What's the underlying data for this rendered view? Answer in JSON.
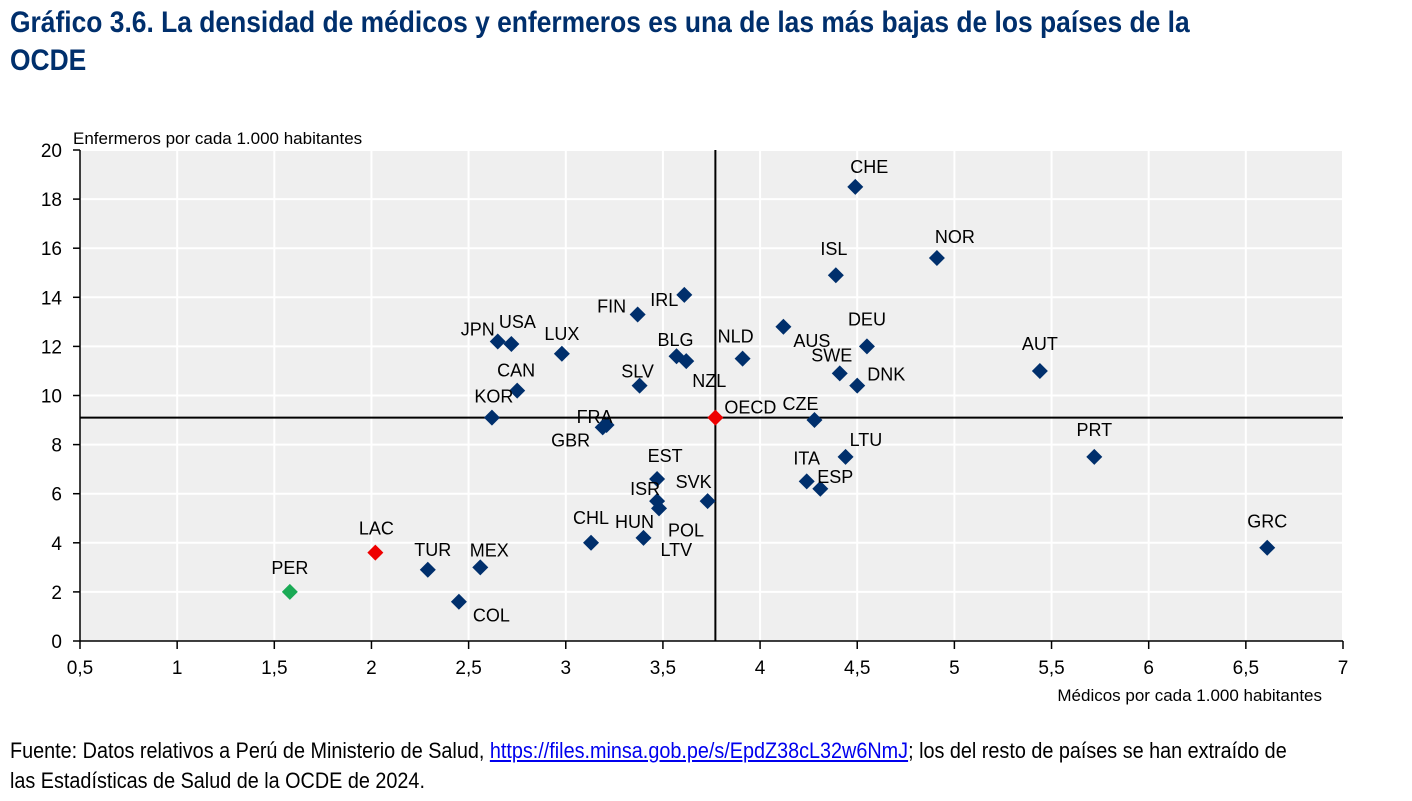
{
  "title": {
    "line1": "Gráfico 3.6. La densidad de médicos y enfermeros es una de las más bajas de los países de la",
    "line2": "OCDE"
  },
  "source": {
    "prefix": "Fuente: Datos relativos a Perú de Ministerio de Salud, ",
    "link": "https://files.minsa.gob.pe/s/EpdZ38cL32w6NmJ",
    "suffix": "; los del resto de países se han extraído de las Estadísticas de Salud de la OCDE de 2024."
  },
  "chart_data": {
    "type": "scatter",
    "title": "Gráfico 3.6. La densidad de médicos y enfermeros es una de las más bajas de los países de la OCDE",
    "xlabel": "Médicos por cada 1.000 habitantes",
    "ylabel": "Enfermeros por cada 1.000 habitantes",
    "xlim": [
      0.5,
      7
    ],
    "ylim": [
      0,
      20
    ],
    "x_ticks": [
      "0,5",
      "1",
      "1,5",
      "2",
      "2,5",
      "3",
      "3,5",
      "4",
      "4,5",
      "5",
      "5,5",
      "6",
      "6,5",
      "7"
    ],
    "y_ticks": [
      "0",
      "2",
      "4",
      "6",
      "8",
      "10",
      "12",
      "14",
      "16",
      "18",
      "20"
    ],
    "grid": true,
    "reference_lines": {
      "x": 3.77,
      "y": 9.1
    },
    "colors": {
      "default": "#002f6c",
      "highlight": "#ee0000",
      "peru": "#1aaa55",
      "background": "#efefef",
      "grid": "#ffffff",
      "axis": "#000000"
    },
    "points": [
      {
        "label": "CHE",
        "x": 4.49,
        "y": 18.5,
        "group": "default"
      },
      {
        "label": "NOR",
        "x": 4.91,
        "y": 15.6,
        "group": "default"
      },
      {
        "label": "ISL",
        "x": 4.39,
        "y": 14.9,
        "group": "default"
      },
      {
        "label": "IRL",
        "x": 3.61,
        "y": 14.1,
        "group": "default"
      },
      {
        "label": "FIN",
        "x": 3.37,
        "y": 13.3,
        "group": "default"
      },
      {
        "label": "AUS",
        "x": 4.12,
        "y": 12.8,
        "group": "default"
      },
      {
        "label": "DEU",
        "x": 4.55,
        "y": 12.0,
        "group": "default"
      },
      {
        "label": "USA",
        "x": 2.72,
        "y": 12.1,
        "group": "default"
      },
      {
        "label": "JPN",
        "x": 2.65,
        "y": 12.2,
        "group": "default"
      },
      {
        "label": "LUX",
        "x": 2.98,
        "y": 11.7,
        "group": "default"
      },
      {
        "label": "BLG",
        "x": 3.57,
        "y": 11.6,
        "group": "default"
      },
      {
        "label": "NZL",
        "x": 3.62,
        "y": 11.4,
        "group": "default"
      },
      {
        "label": "NLD",
        "x": 3.91,
        "y": 11.5,
        "group": "default"
      },
      {
        "label": "AUT",
        "x": 5.44,
        "y": 11.0,
        "group": "default"
      },
      {
        "label": "SWE",
        "x": 4.41,
        "y": 10.9,
        "group": "default"
      },
      {
        "label": "DNK",
        "x": 4.5,
        "y": 10.4,
        "group": "default"
      },
      {
        "label": "SLV",
        "x": 3.38,
        "y": 10.4,
        "group": "default"
      },
      {
        "label": "CAN",
        "x": 2.75,
        "y": 10.2,
        "group": "default"
      },
      {
        "label": "KOR",
        "x": 2.62,
        "y": 9.1,
        "group": "default"
      },
      {
        "label": "OECD",
        "x": 3.77,
        "y": 9.1,
        "group": "highlight"
      },
      {
        "label": "CZE",
        "x": 4.28,
        "y": 9.0,
        "group": "default"
      },
      {
        "label": "FRA",
        "x": 3.21,
        "y": 8.8,
        "group": "default"
      },
      {
        "label": "GBR",
        "x": 3.19,
        "y": 8.7,
        "group": "default"
      },
      {
        "label": "PRT",
        "x": 5.72,
        "y": 7.5,
        "group": "default"
      },
      {
        "label": "LTU",
        "x": 4.44,
        "y": 7.5,
        "group": "default"
      },
      {
        "label": "ITA",
        "x": 4.24,
        "y": 6.5,
        "group": "default"
      },
      {
        "label": "ESP",
        "x": 4.31,
        "y": 6.2,
        "group": "default"
      },
      {
        "label": "EST",
        "x": 3.47,
        "y": 6.6,
        "group": "default"
      },
      {
        "label": "SVK",
        "x": 3.73,
        "y": 5.7,
        "group": "default"
      },
      {
        "label": "ISR",
        "x": 3.47,
        "y": 5.7,
        "group": "default"
      },
      {
        "label": "POL",
        "x": 3.48,
        "y": 5.4,
        "group": "default"
      },
      {
        "label": "HUN",
        "x": 3.4,
        "y": 4.2,
        "group": "default"
      },
      {
        "label": "LTV",
        "x": 3.4,
        "y": 4.2,
        "group": "default",
        "hidden": true
      },
      {
        "label": "CHL",
        "x": 3.13,
        "y": 4.0,
        "group": "default"
      },
      {
        "label": "GRC",
        "x": 6.61,
        "y": 3.8,
        "group": "default"
      },
      {
        "label": "LAC",
        "x": 2.02,
        "y": 3.6,
        "group": "highlight"
      },
      {
        "label": "MEX",
        "x": 2.56,
        "y": 3.0,
        "group": "default"
      },
      {
        "label": "TUR",
        "x": 2.29,
        "y": 2.9,
        "group": "default"
      },
      {
        "label": "PER",
        "x": 1.58,
        "y": 2.0,
        "group": "peru"
      },
      {
        "label": "COL",
        "x": 2.45,
        "y": 1.6,
        "group": "default"
      }
    ]
  }
}
